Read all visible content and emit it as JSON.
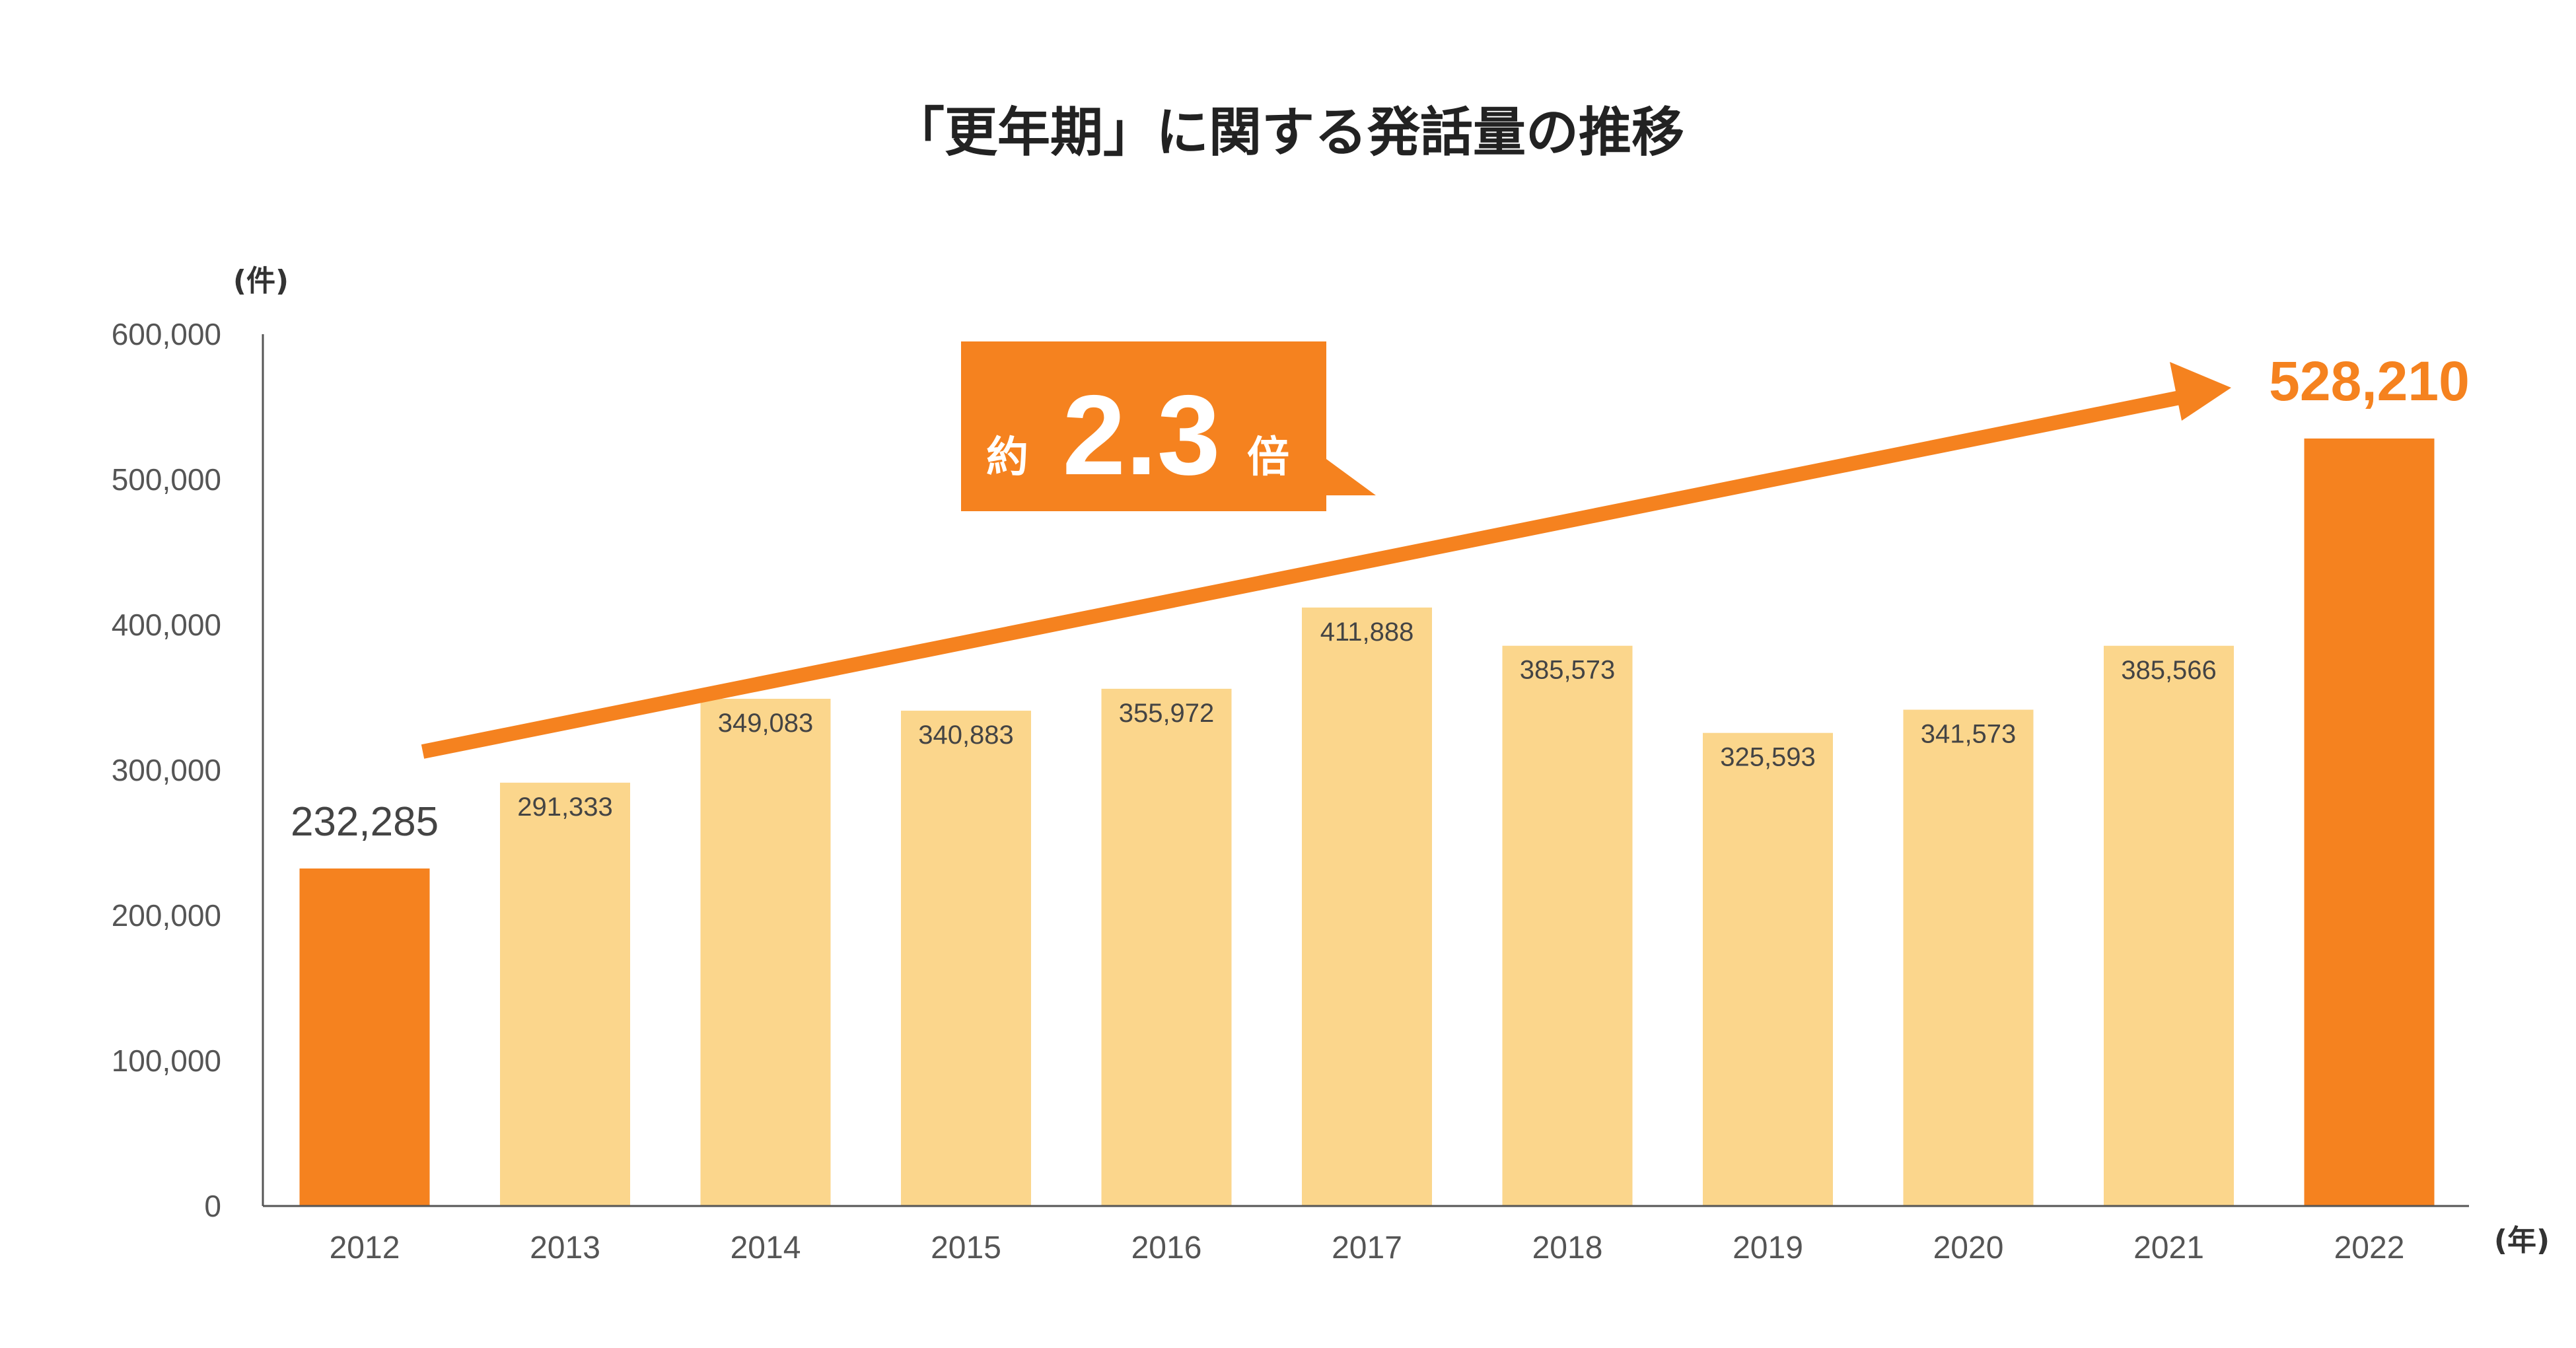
{
  "colors": {
    "highlight_bar": "#f5821f",
    "normal_bar": "#fbd68c",
    "arrow": "#f5821f",
    "badge": "#f5821f",
    "axis": "#555555"
  },
  "annotation": {
    "prefix": "約",
    "multiplier": "2.3",
    "suffix": "倍"
  },
  "chart_data": {
    "type": "bar",
    "title": "「更年期」に関する発話量の推移",
    "ylabel": "(件)",
    "xlabel": "(年)",
    "ylim": [
      0,
      600000
    ],
    "yticks": [
      0,
      100000,
      200000,
      300000,
      400000,
      500000,
      600000
    ],
    "ytick_labels": [
      "0",
      "100,000",
      "200,000",
      "300,000",
      "400,000",
      "500,000",
      "600,000"
    ],
    "categories": [
      "2012",
      "2013",
      "2014",
      "2015",
      "2016",
      "2017",
      "2018",
      "2019",
      "2020",
      "2021",
      "2022"
    ],
    "values": [
      232285,
      291333,
      349083,
      340883,
      355972,
      411888,
      385573,
      325593,
      341573,
      385566,
      528210
    ],
    "value_labels": [
      "232,285",
      "291,333",
      "349,083",
      "340,883",
      "355,972",
      "411,888",
      "385,573",
      "325,593",
      "341,573",
      "385,566",
      "528,210"
    ],
    "highlighted": [
      "2012",
      "2022"
    ],
    "grid": false,
    "legend": "none"
  }
}
